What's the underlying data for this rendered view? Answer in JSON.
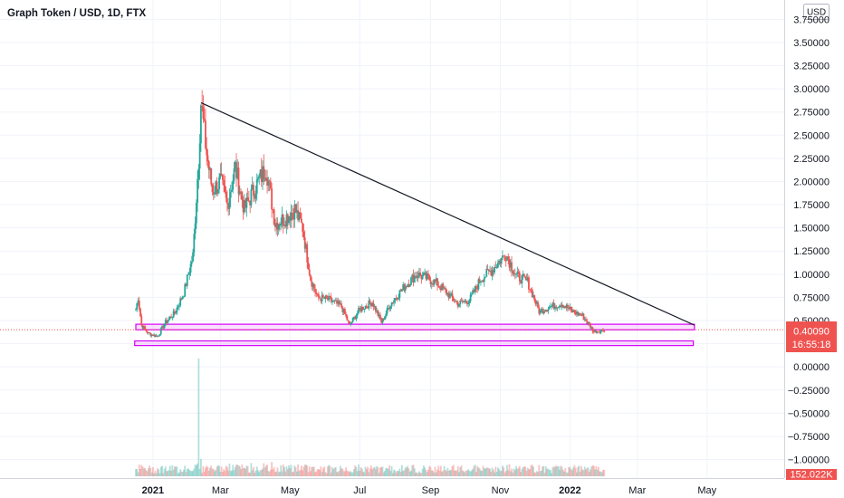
{
  "header": {
    "title": "Graph Token / USD, 1D, FTX"
  },
  "price_axis": {
    "currency_badge": "USD",
    "ticks": [
      "3.75000",
      "3.50000",
      "3.25000",
      "3.00000",
      "2.75000",
      "2.50000",
      "2.25000",
      "2.00000",
      "1.75000",
      "1.50000",
      "1.25000",
      "1.00000",
      "0.75000",
      "0.50000",
      "0.25000",
      "0.00000",
      "−0.25000",
      "−0.50000",
      "−0.75000",
      "−1.00000"
    ],
    "current_price": "0.40090",
    "countdown": "16:55:18",
    "volume_label": "152.022K"
  },
  "time_axis": {
    "ticks": [
      "2021",
      "Mar",
      "May",
      "Jul",
      "Sep",
      "Nov",
      "2022",
      "Mar",
      "May"
    ]
  },
  "colors": {
    "up": "#26a69a",
    "down": "#ef5350",
    "trendline": "#131722",
    "zone": "#d500f9",
    "price_line": "#ef5350",
    "grid": "#f0f3fa"
  },
  "chart_data": {
    "type": "candlestick",
    "title": "Graph Token / USD, 1D, FTX",
    "ylim": [
      -1.2,
      3.9
    ],
    "y_ticks": [
      3.75,
      3.5,
      3.25,
      3.0,
      2.75,
      2.5,
      2.25,
      2.0,
      1.75,
      1.5,
      1.25,
      1.0,
      0.75,
      0.5,
      0.25,
      0.0,
      -0.25,
      -0.5,
      -0.75,
      -1.0
    ],
    "x_range": [
      "2020-12-17",
      "2022-05-25"
    ],
    "x_ticks": [
      "2021-01-01",
      "2021-03-01",
      "2021-05-01",
      "2021-07-01",
      "2021-09-01",
      "2021-11-01",
      "2022-01-01",
      "2022-03-01",
      "2022-05-01"
    ],
    "price_anchors": [
      [
        "2020-12-17",
        0.62
      ],
      [
        "2020-12-19",
        0.75
      ],
      [
        "2020-12-22",
        0.45
      ],
      [
        "2020-12-28",
        0.36
      ],
      [
        "2021-01-05",
        0.33
      ],
      [
        "2021-01-12",
        0.48
      ],
      [
        "2021-01-20",
        0.58
      ],
      [
        "2021-01-28",
        0.8
      ],
      [
        "2021-02-05",
        1.2
      ],
      [
        "2021-02-10",
        2.25
      ],
      [
        "2021-02-12",
        2.85
      ],
      [
        "2021-02-17",
        2.3
      ],
      [
        "2021-02-22",
        1.9
      ],
      [
        "2021-03-01",
        2.0
      ],
      [
        "2021-03-07",
        1.75
      ],
      [
        "2021-03-14",
        2.15
      ],
      [
        "2021-03-22",
        1.7
      ],
      [
        "2021-04-01",
        1.95
      ],
      [
        "2021-04-10",
        2.15
      ],
      [
        "2021-04-18",
        1.55
      ],
      [
        "2021-04-26",
        1.6
      ],
      [
        "2021-05-05",
        1.7
      ],
      [
        "2021-05-12",
        1.5
      ],
      [
        "2021-05-19",
        0.95
      ],
      [
        "2021-05-25",
        0.75
      ],
      [
        "2021-06-05",
        0.72
      ],
      [
        "2021-06-15",
        0.65
      ],
      [
        "2021-06-22",
        0.45
      ],
      [
        "2021-07-01",
        0.62
      ],
      [
        "2021-07-12",
        0.7
      ],
      [
        "2021-07-20",
        0.48
      ],
      [
        "2021-07-28",
        0.68
      ],
      [
        "2021-08-10",
        0.88
      ],
      [
        "2021-08-20",
        1.0
      ],
      [
        "2021-08-30",
        0.95
      ],
      [
        "2021-09-07",
        0.9
      ],
      [
        "2021-09-15",
        0.8
      ],
      [
        "2021-09-25",
        0.68
      ],
      [
        "2021-10-05",
        0.72
      ],
      [
        "2021-10-15",
        0.95
      ],
      [
        "2021-10-25",
        1.05
      ],
      [
        "2021-11-01",
        1.15
      ],
      [
        "2021-11-06",
        1.22
      ],
      [
        "2021-11-15",
        0.98
      ],
      [
        "2021-11-25",
        0.92
      ],
      [
        "2021-12-05",
        0.6
      ],
      [
        "2021-12-15",
        0.65
      ],
      [
        "2021-12-25",
        0.68
      ],
      [
        "2022-01-03",
        0.6
      ],
      [
        "2022-01-12",
        0.55
      ],
      [
        "2022-01-22",
        0.38
      ],
      [
        "2022-01-31",
        0.4
      ]
    ],
    "trendline": [
      [
        "2021-02-12",
        2.85
      ],
      [
        "2022-04-20",
        0.45
      ]
    ],
    "support_zones": [
      {
        "start": "2020-12-17",
        "end": "2022-04-20",
        "top": 0.46,
        "bottom": 0.4
      },
      {
        "start": "2020-12-16",
        "end": "2022-04-19",
        "top": 0.28,
        "bottom": 0.23
      }
    ],
    "volume_spike": {
      "date": "2021-02-10",
      "label": "152.022K"
    },
    "current_price": 0.4009
  }
}
